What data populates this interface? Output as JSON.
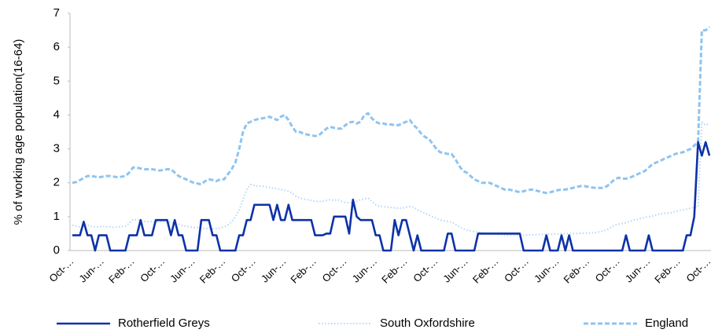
{
  "chart_data": {
    "type": "line",
    "ylabel": "% of working age population(16-64)",
    "ylim": [
      0,
      7
    ],
    "yticks": [
      0,
      1,
      2,
      3,
      4,
      5,
      6,
      7
    ],
    "categories": [
      "Oct-…",
      null,
      null,
      null,
      null,
      null,
      null,
      null,
      "Jun-…",
      null,
      null,
      null,
      null,
      null,
      null,
      null,
      "Feb-…",
      null,
      null,
      null,
      null,
      null,
      null,
      null,
      "Oct-…",
      null,
      null,
      null,
      null,
      null,
      null,
      null,
      "Jun-…",
      null,
      null,
      null,
      null,
      null,
      null,
      null,
      "Feb-…",
      null,
      null,
      null,
      null,
      null,
      null,
      null,
      "Oct-…",
      null,
      null,
      null,
      null,
      null,
      null,
      null,
      "Jun-…",
      null,
      null,
      null,
      null,
      null,
      null,
      null,
      "Feb-…",
      null,
      null,
      null,
      null,
      null,
      null,
      null,
      "Oct-…",
      null,
      null,
      null,
      null,
      null,
      null,
      null,
      "Jun-…",
      null,
      null,
      null,
      null,
      null,
      null,
      null,
      "Feb-…",
      null,
      null,
      null,
      null,
      null,
      null,
      null,
      "Oct-…",
      null,
      null,
      null,
      null,
      null,
      null,
      null,
      "Jun-…",
      null,
      null,
      null,
      null,
      null,
      null,
      null,
      "Feb-…",
      null,
      null,
      null,
      null,
      null,
      null,
      null,
      "Oct-…",
      null,
      null,
      null,
      null,
      null,
      null,
      null,
      "Jun-…",
      null,
      null,
      null,
      null,
      null,
      null,
      null,
      "Feb-…",
      null,
      null,
      null,
      null,
      null,
      null,
      null,
      "Oct-…",
      null,
      null,
      null,
      null,
      null,
      null,
      null,
      "Jun-…",
      null,
      null,
      null,
      null,
      null,
      null,
      null,
      "Feb-…",
      null,
      null,
      null,
      null,
      null,
      null,
      null,
      "Oct-…"
    ],
    "series": [
      {
        "name": "Rotherfield Greys",
        "color": "#0d32a8",
        "style": "solid",
        "values": [
          0.45,
          0.45,
          0.45,
          0.85,
          0.45,
          0.45,
          0,
          0.45,
          0.45,
          0.45,
          0,
          0,
          0,
          0,
          0,
          0.45,
          0.45,
          0.45,
          0.9,
          0.45,
          0.45,
          0.45,
          0.9,
          0.9,
          0.9,
          0.9,
          0.45,
          0.9,
          0.45,
          0.45,
          0,
          0,
          0,
          0,
          0.9,
          0.9,
          0.9,
          0.45,
          0.45,
          0,
          0,
          0,
          0,
          0,
          0.45,
          0.45,
          0.9,
          0.9,
          1.35,
          1.35,
          1.35,
          1.35,
          1.35,
          0.9,
          1.35,
          0.9,
          0.9,
          1.35,
          0.9,
          0.9,
          0.9,
          0.9,
          0.9,
          0.9,
          0.45,
          0.45,
          0.45,
          0.5,
          0.5,
          1.0,
          1.0,
          1.0,
          1.0,
          0.5,
          1.5,
          1.0,
          0.9,
          0.9,
          0.9,
          0.9,
          0.45,
          0.45,
          0,
          0,
          0,
          0.9,
          0.45,
          0.9,
          0.9,
          0.45,
          0,
          0.45,
          0,
          0,
          0,
          0,
          0,
          0,
          0,
          0.5,
          0.5,
          0,
          0,
          0,
          0,
          0,
          0,
          0.5,
          0.5,
          0.5,
          0.5,
          0.5,
          0.5,
          0.5,
          0.5,
          0.5,
          0.5,
          0.5,
          0.5,
          0,
          0,
          0,
          0,
          0,
          0,
          0.45,
          0,
          0,
          0,
          0.45,
          0,
          0.45,
          0,
          0,
          0,
          0,
          0,
          0,
          0,
          0,
          0,
          0,
          0,
          0,
          0,
          0,
          0.45,
          0,
          0,
          0,
          0,
          0,
          0.45,
          0,
          0,
          0,
          0,
          0,
          0,
          0,
          0,
          0,
          0.45,
          0.45,
          1.0,
          3.2,
          2.8,
          3.2,
          2.8
        ]
      },
      {
        "name": "South Oxfordshire",
        "color": "#b4d6f6",
        "style": "dotted",
        "values": [
          0.75,
          0.72,
          0.7,
          0.72,
          0.75,
          0.72,
          0.7,
          0.7,
          0.72,
          0.7,
          0.7,
          0.68,
          0.7,
          0.7,
          0.72,
          0.8,
          0.92,
          0.9,
          0.88,
          0.86,
          0.85,
          0.85,
          0.84,
          0.85,
          0.86,
          0.85,
          0.82,
          0.8,
          0.78,
          0.74,
          0.72,
          0.7,
          0.68,
          0.68,
          0.66,
          0.65,
          0.65,
          0.64,
          0.65,
          0.66,
          0.7,
          0.75,
          0.85,
          1.0,
          1.2,
          1.5,
          1.8,
          1.95,
          1.92,
          1.9,
          1.9,
          1.88,
          1.86,
          1.84,
          1.82,
          1.8,
          1.78,
          1.75,
          1.7,
          1.6,
          1.55,
          1.52,
          1.5,
          1.48,
          1.45,
          1.45,
          1.45,
          1.48,
          1.5,
          1.48,
          1.5,
          1.45,
          1.42,
          1.4,
          1.42,
          1.45,
          1.5,
          1.52,
          1.55,
          1.45,
          1.35,
          1.3,
          1.3,
          1.28,
          1.27,
          1.26,
          1.25,
          1.25,
          1.28,
          1.3,
          1.28,
          1.2,
          1.15,
          1.1,
          1.05,
          1.0,
          0.95,
          0.9,
          0.88,
          0.86,
          0.84,
          0.78,
          0.7,
          0.65,
          0.6,
          0.58,
          0.56,
          0.54,
          0.52,
          0.5,
          0.5,
          0.49,
          0.48,
          0.47,
          0.46,
          0.45,
          0.45,
          0.45,
          0.45,
          0.45,
          0.46,
          0.46,
          0.47,
          0.47,
          0.48,
          0.48,
          0.48,
          0.49,
          0.49,
          0.5,
          0.5,
          0.5,
          0.5,
          0.5,
          0.51,
          0.51,
          0.52,
          0.52,
          0.53,
          0.55,
          0.58,
          0.62,
          0.68,
          0.75,
          0.78,
          0.8,
          0.82,
          0.86,
          0.9,
          0.92,
          0.95,
          0.98,
          1.0,
          1.02,
          1.05,
          1.08,
          1.1,
          1.1,
          1.12,
          1.15,
          1.18,
          1.2,
          1.22,
          1.25,
          1.28,
          1.3,
          3.8,
          3.7,
          3.75
        ]
      },
      {
        "name": "England",
        "color": "#8fc4f0",
        "style": "dashed",
        "values": [
          2.0,
          2.02,
          2.08,
          2.14,
          2.2,
          2.2,
          2.18,
          2.16,
          2.18,
          2.2,
          2.2,
          2.18,
          2.16,
          2.18,
          2.2,
          2.3,
          2.45,
          2.45,
          2.42,
          2.4,
          2.4,
          2.4,
          2.38,
          2.36,
          2.38,
          2.4,
          2.4,
          2.3,
          2.2,
          2.15,
          2.1,
          2.05,
          2.0,
          1.98,
          1.95,
          2.05,
          2.1,
          2.08,
          2.05,
          2.1,
          2.1,
          2.25,
          2.4,
          2.6,
          3.0,
          3.5,
          3.75,
          3.8,
          3.85,
          3.88,
          3.9,
          3.92,
          3.95,
          3.9,
          3.85,
          3.95,
          4.0,
          3.85,
          3.65,
          3.5,
          3.5,
          3.45,
          3.42,
          3.4,
          3.38,
          3.4,
          3.5,
          3.6,
          3.65,
          3.62,
          3.6,
          3.6,
          3.7,
          3.78,
          3.8,
          3.75,
          3.8,
          4.0,
          4.05,
          3.9,
          3.8,
          3.75,
          3.75,
          3.72,
          3.72,
          3.7,
          3.7,
          3.75,
          3.8,
          3.85,
          3.7,
          3.6,
          3.45,
          3.35,
          3.3,
          3.15,
          3.0,
          2.9,
          2.88,
          2.85,
          2.85,
          2.7,
          2.5,
          2.35,
          2.3,
          2.2,
          2.1,
          2.05,
          2.0,
          2.0,
          2.0,
          1.95,
          1.9,
          1.85,
          1.8,
          1.8,
          1.78,
          1.75,
          1.72,
          1.75,
          1.78,
          1.8,
          1.78,
          1.75,
          1.72,
          1.7,
          1.72,
          1.75,
          1.78,
          1.8,
          1.8,
          1.82,
          1.85,
          1.88,
          1.9,
          1.9,
          1.88,
          1.86,
          1.85,
          1.85,
          1.85,
          1.9,
          2.0,
          2.1,
          2.15,
          2.12,
          2.12,
          2.15,
          2.2,
          2.25,
          2.3,
          2.35,
          2.45,
          2.55,
          2.6,
          2.65,
          2.7,
          2.75,
          2.8,
          2.85,
          2.88,
          2.9,
          2.95,
          3.0,
          3.1,
          3.2,
          6.5,
          6.5,
          6.6
        ]
      }
    ],
    "legend": "bottom"
  }
}
